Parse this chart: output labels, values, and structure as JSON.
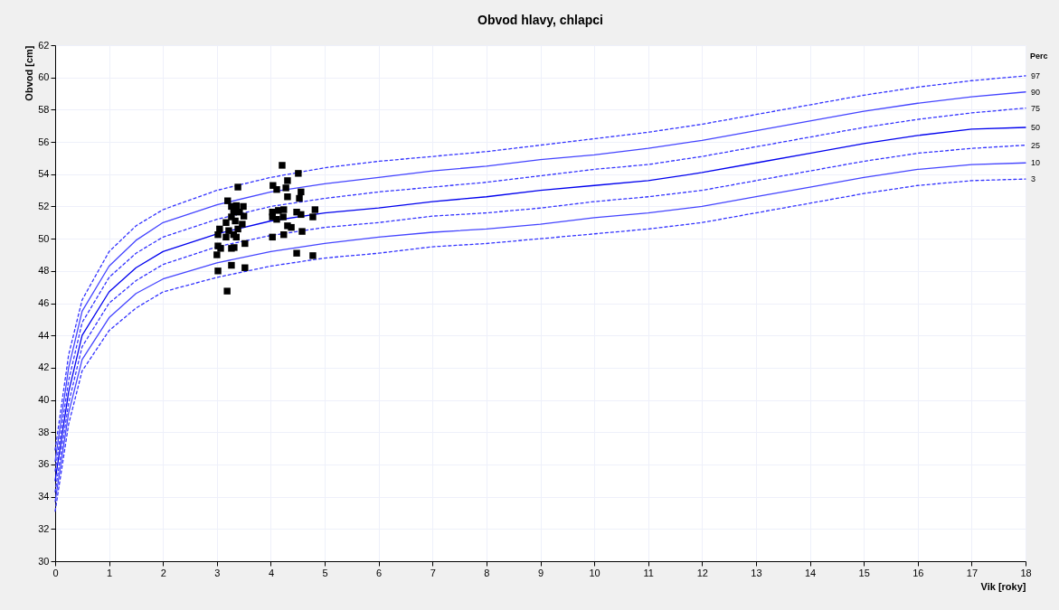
{
  "chart_data": {
    "type": "line",
    "title": "Obvod hlavy, chlapci",
    "xlabel": "Vik [roky]",
    "ylabel": "Obvod [cm]",
    "legend_title": "Perc",
    "legend": "right",
    "grid": true,
    "xlim": [
      0,
      18
    ],
    "xticks": [
      0,
      1,
      2,
      3,
      4,
      5,
      6,
      7,
      8,
      9,
      10,
      11,
      12,
      13,
      14,
      15,
      16,
      17,
      18
    ],
    "ylim": [
      30,
      62
    ],
    "yticks": [
      30,
      32,
      34,
      36,
      38,
      40,
      42,
      44,
      46,
      48,
      50,
      52,
      54,
      56,
      58,
      60,
      62
    ],
    "x": [
      0,
      0.25,
      0.5,
      1,
      1.5,
      2,
      3,
      4,
      5,
      6,
      7,
      8,
      9,
      10,
      11,
      12,
      13,
      14,
      15,
      16,
      17,
      18
    ],
    "series": [
      {
        "name": "97",
        "color": "#3333ff",
        "line_style": "dashed",
        "values": [
          36.9,
          42.8,
          46.2,
          49.2,
          50.8,
          51.8,
          53,
          53.8,
          54.4,
          54.8,
          55.1,
          55.4,
          55.8,
          56.2,
          56.6,
          57.1,
          57.7,
          58.3,
          58.9,
          59.4,
          59.8,
          60.1
        ]
      },
      {
        "name": "90",
        "color": "#4444ff",
        "line_style": "solid",
        "values": [
          36.2,
          42,
          45.5,
          48.3,
          49.9,
          51,
          52.1,
          52.9,
          53.4,
          53.8,
          54.2,
          54.5,
          54.9,
          55.2,
          55.6,
          56.1,
          56.7,
          57.3,
          57.9,
          58.4,
          58.8,
          59.1
        ]
      },
      {
        "name": "75",
        "color": "#3333ff",
        "line_style": "dashed",
        "values": [
          35.6,
          41.2,
          44.8,
          47.6,
          49.1,
          50.1,
          51.2,
          52,
          52.5,
          52.9,
          53.2,
          53.5,
          53.9,
          54.3,
          54.6,
          55.1,
          55.7,
          56.3,
          56.9,
          57.4,
          57.8,
          58.1
        ]
      },
      {
        "name": "50",
        "color": "#0000ee",
        "line_style": "solid",
        "values": [
          35,
          40.5,
          44,
          46.7,
          48.2,
          49.2,
          50.3,
          51.1,
          51.6,
          51.9,
          52.3,
          52.6,
          53,
          53.3,
          53.6,
          54.1,
          54.7,
          55.3,
          55.9,
          56.4,
          56.8,
          56.9
        ]
      },
      {
        "name": "25",
        "color": "#3333ff",
        "line_style": "dashed",
        "values": [
          34.3,
          39.8,
          43.3,
          46,
          47.4,
          48.4,
          49.5,
          50.2,
          50.7,
          51,
          51.4,
          51.6,
          51.9,
          52.3,
          52.6,
          53,
          53.6,
          54.2,
          54.8,
          55.3,
          55.6,
          55.8
        ]
      },
      {
        "name": "10",
        "color": "#4444ff",
        "line_style": "solid",
        "values": [
          33.7,
          39.2,
          42.5,
          45.1,
          46.6,
          47.5,
          48.5,
          49.2,
          49.7,
          50.1,
          50.4,
          50.6,
          50.9,
          51.3,
          51.6,
          52,
          52.6,
          53.2,
          53.8,
          54.3,
          54.6,
          54.7
        ]
      },
      {
        "name": "3",
        "color": "#3333ff",
        "line_style": "dashed",
        "values": [
          33.1,
          38.5,
          41.8,
          44.3,
          45.7,
          46.7,
          47.6,
          48.3,
          48.8,
          49.1,
          49.5,
          49.7,
          50,
          50.3,
          50.6,
          51,
          51.6,
          52.2,
          52.8,
          53.3,
          53.6,
          53.7
        ]
      },
      {
        "type": "scatter",
        "marker": "square",
        "color": "#000000",
        "x": [
          4.21,
          4.51,
          3.39,
          4.04,
          4.31,
          4.11,
          4.28,
          4.56,
          4.31,
          4.53,
          3.2,
          3.27,
          3.36,
          3.49,
          3.31,
          3.42,
          4.03,
          4.14,
          4.24,
          4.48,
          4.82,
          3.27,
          3.5,
          4.03,
          4.23,
          4.56,
          4.78,
          3.17,
          3.34,
          3.47,
          4.11,
          4.31,
          4.38,
          3.05,
          3.22,
          3.39,
          3.02,
          3.17,
          3.31,
          3.36,
          4.03,
          4.24,
          4.58,
          3.02,
          3.07,
          3.27,
          3.32,
          3.52,
          3.0,
          4.48,
          4.78,
          3.27,
          3.52,
          3.02,
          3.19
        ],
        "values": [
          54.55,
          54.05,
          53.2,
          53.3,
          53.6,
          53.05,
          53.15,
          52.9,
          52.6,
          52.5,
          52.35,
          52.0,
          52.05,
          52.0,
          51.65,
          51.65,
          51.65,
          51.75,
          51.8,
          51.65,
          51.8,
          51.35,
          51.4,
          51.35,
          51.35,
          51.5,
          51.35,
          51.0,
          51.1,
          50.9,
          51.2,
          50.8,
          50.7,
          50.6,
          50.5,
          50.6,
          50.25,
          50.1,
          50.25,
          50.1,
          50.1,
          50.25,
          50.45,
          49.55,
          49.4,
          49.4,
          49.45,
          49.7,
          49.0,
          49.1,
          48.95,
          48.35,
          48.2,
          48.0,
          46.75
        ]
      }
    ]
  }
}
